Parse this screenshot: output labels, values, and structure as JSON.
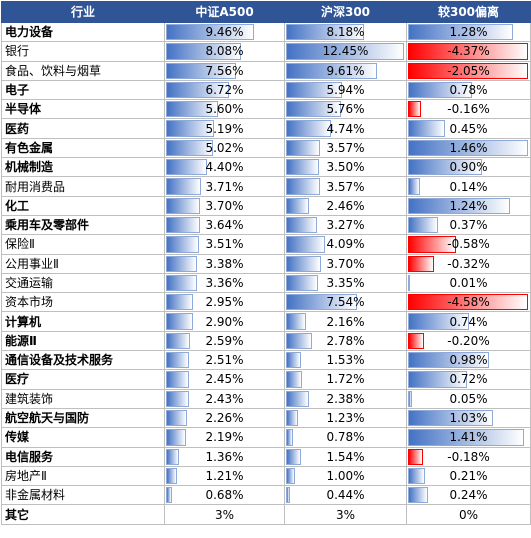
{
  "header": {
    "industry": "行业",
    "csi_a500": "中证A500",
    "hs300": "沪深300",
    "deviation": "较300偏离"
  },
  "colors": {
    "header_bg": "#2f5597",
    "pos_bar": "#4472c4",
    "neg_bar": "#ff0000"
  },
  "max": {
    "weight": 12.45,
    "deviation": 1.46
  },
  "rows": [
    {
      "name": "电力设备",
      "bold": true,
      "a500": "9.46%",
      "a500_v": 9.46,
      "hs300": "8.18%",
      "hs300_v": 8.18,
      "dev": "1.28%",
      "dev_v": 1.28
    },
    {
      "name": "银行",
      "bold": false,
      "a500": "8.08%",
      "a500_v": 8.08,
      "hs300": "12.45%",
      "hs300_v": 12.45,
      "dev": "-4.37%",
      "dev_v": -4.37
    },
    {
      "name": "食品、饮料与烟草",
      "bold": false,
      "a500": "7.56%",
      "a500_v": 7.56,
      "hs300": "9.61%",
      "hs300_v": 9.61,
      "dev": "-2.05%",
      "dev_v": -2.05
    },
    {
      "name": "电子",
      "bold": true,
      "a500": "6.72%",
      "a500_v": 6.72,
      "hs300": "5.94%",
      "hs300_v": 5.94,
      "dev": "0.78%",
      "dev_v": 0.78
    },
    {
      "name": "半导体",
      "bold": true,
      "a500": "5.60%",
      "a500_v": 5.6,
      "hs300": "5.76%",
      "hs300_v": 5.76,
      "dev": "-0.16%",
      "dev_v": -0.16
    },
    {
      "name": "医药",
      "bold": true,
      "a500": "5.19%",
      "a500_v": 5.19,
      "hs300": "4.74%",
      "hs300_v": 4.74,
      "dev": "0.45%",
      "dev_v": 0.45
    },
    {
      "name": "有色金属",
      "bold": true,
      "a500": "5.02%",
      "a500_v": 5.02,
      "hs300": "3.57%",
      "hs300_v": 3.57,
      "dev": "1.46%",
      "dev_v": 1.46
    },
    {
      "name": "机械制造",
      "bold": true,
      "a500": "4.40%",
      "a500_v": 4.4,
      "hs300": "3.50%",
      "hs300_v": 3.5,
      "dev": "0.90%",
      "dev_v": 0.9
    },
    {
      "name": "耐用消费品",
      "bold": false,
      "a500": "3.71%",
      "a500_v": 3.71,
      "hs300": "3.57%",
      "hs300_v": 3.57,
      "dev": "0.14%",
      "dev_v": 0.14
    },
    {
      "name": "化工",
      "bold": true,
      "a500": "3.70%",
      "a500_v": 3.7,
      "hs300": "2.46%",
      "hs300_v": 2.46,
      "dev": "1.24%",
      "dev_v": 1.24
    },
    {
      "name": "乘用车及零部件",
      "bold": true,
      "a500": "3.64%",
      "a500_v": 3.64,
      "hs300": "3.27%",
      "hs300_v": 3.27,
      "dev": "0.37%",
      "dev_v": 0.37
    },
    {
      "name": "保险Ⅱ",
      "bold": false,
      "a500": "3.51%",
      "a500_v": 3.51,
      "hs300": "4.09%",
      "hs300_v": 4.09,
      "dev": "-0.58%",
      "dev_v": -0.58
    },
    {
      "name": "公用事业Ⅱ",
      "bold": false,
      "a500": "3.38%",
      "a500_v": 3.38,
      "hs300": "3.70%",
      "hs300_v": 3.7,
      "dev": "-0.32%",
      "dev_v": -0.32
    },
    {
      "name": "交通运输",
      "bold": false,
      "a500": "3.36%",
      "a500_v": 3.36,
      "hs300": "3.35%",
      "hs300_v": 3.35,
      "dev": "0.01%",
      "dev_v": 0.01
    },
    {
      "name": "资本市场",
      "bold": false,
      "a500": "2.95%",
      "a500_v": 2.95,
      "hs300": "7.54%",
      "hs300_v": 7.54,
      "dev": "-4.58%",
      "dev_v": -4.58
    },
    {
      "name": "计算机",
      "bold": true,
      "a500": "2.90%",
      "a500_v": 2.9,
      "hs300": "2.16%",
      "hs300_v": 2.16,
      "dev": "0.74%",
      "dev_v": 0.74
    },
    {
      "name": "能源Ⅱ",
      "bold": true,
      "a500": "2.59%",
      "a500_v": 2.59,
      "hs300": "2.78%",
      "hs300_v": 2.78,
      "dev": "-0.20%",
      "dev_v": -0.2
    },
    {
      "name": "通信设备及技术服务",
      "bold": true,
      "a500": "2.51%",
      "a500_v": 2.51,
      "hs300": "1.53%",
      "hs300_v": 1.53,
      "dev": "0.98%",
      "dev_v": 0.98
    },
    {
      "name": "医疗",
      "bold": true,
      "a500": "2.45%",
      "a500_v": 2.45,
      "hs300": "1.72%",
      "hs300_v": 1.72,
      "dev": "0.72%",
      "dev_v": 0.72
    },
    {
      "name": "建筑装饰",
      "bold": false,
      "a500": "2.43%",
      "a500_v": 2.43,
      "hs300": "2.38%",
      "hs300_v": 2.38,
      "dev": "0.05%",
      "dev_v": 0.05
    },
    {
      "name": "航空航天与国防",
      "bold": true,
      "a500": "2.26%",
      "a500_v": 2.26,
      "hs300": "1.23%",
      "hs300_v": 1.23,
      "dev": "1.03%",
      "dev_v": 1.03
    },
    {
      "name": "传媒",
      "bold": true,
      "a500": "2.19%",
      "a500_v": 2.19,
      "hs300": "0.78%",
      "hs300_v": 0.78,
      "dev": "1.41%",
      "dev_v": 1.41
    },
    {
      "name": "电信服务",
      "bold": true,
      "a500": "1.36%",
      "a500_v": 1.36,
      "hs300": "1.54%",
      "hs300_v": 1.54,
      "dev": "-0.18%",
      "dev_v": -0.18
    },
    {
      "name": "房地产Ⅱ",
      "bold": false,
      "a500": "1.21%",
      "a500_v": 1.21,
      "hs300": "1.00%",
      "hs300_v": 1.0,
      "dev": "0.21%",
      "dev_v": 0.21
    },
    {
      "name": "非金属材料",
      "bold": false,
      "a500": "0.68%",
      "a500_v": 0.68,
      "hs300": "0.44%",
      "hs300_v": 0.44,
      "dev": "0.24%",
      "dev_v": 0.24
    }
  ],
  "other": {
    "name": "其它",
    "a500": "3%",
    "hs300": "3%",
    "dev": "0%"
  }
}
